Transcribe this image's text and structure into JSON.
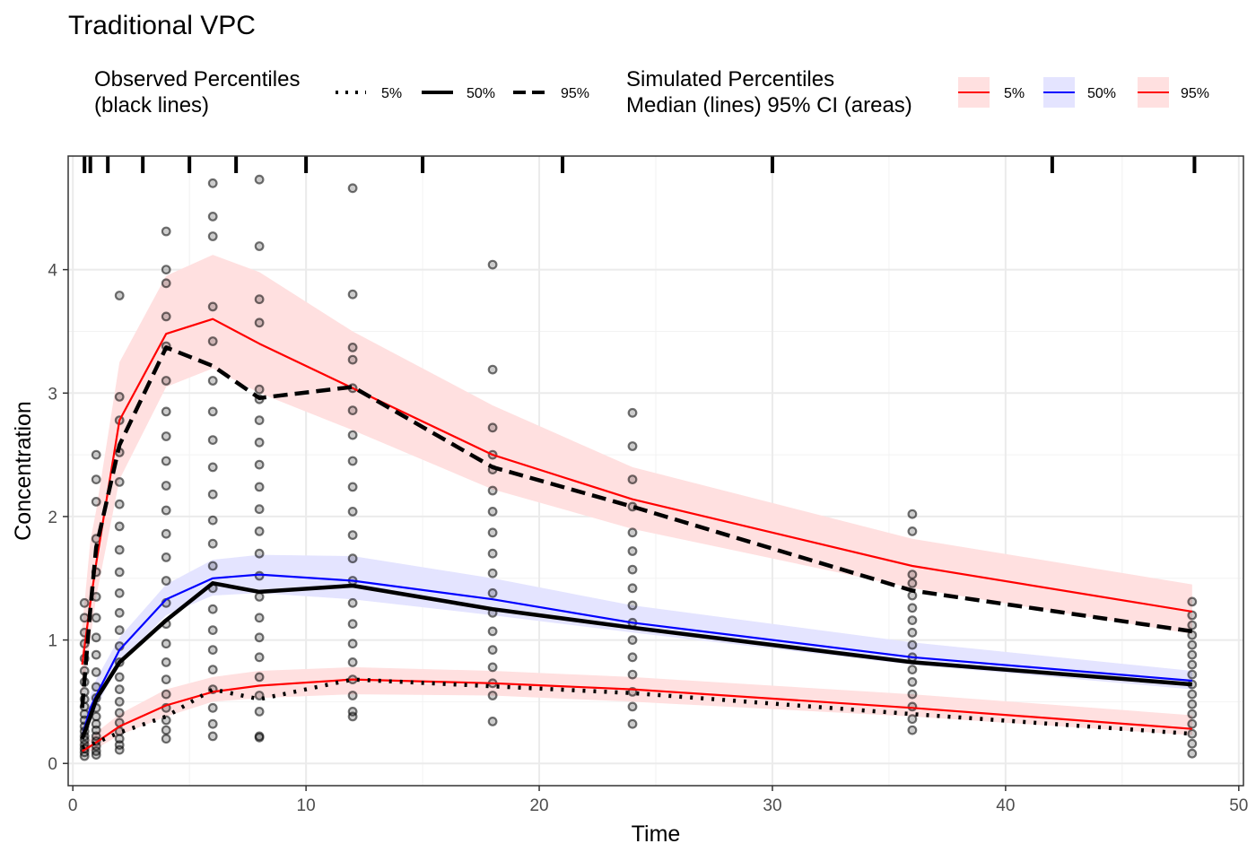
{
  "chart_data": {
    "type": "line",
    "title": "Traditional VPC",
    "xlabel": "Time",
    "ylabel": "Concentration",
    "xlim": [
      -0.2,
      50.2
    ],
    "ylim": [
      -0.18,
      4.92
    ],
    "x_ticks": [
      0,
      10,
      20,
      30,
      40,
      50
    ],
    "y_ticks": [
      0,
      1,
      2,
      3,
      4
    ],
    "grid": true,
    "legend_placement": "top",
    "legend": {
      "observed": {
        "title_line1": "Observed Percentiles",
        "title_line2": "(black lines)",
        "keys": [
          "5%",
          "50%",
          "95%"
        ]
      },
      "simulated": {
        "title_line1": "Simulated Percentiles",
        "title_line2": "Median (lines) 95% CI (areas)",
        "keys": [
          "5%",
          "50%",
          "95%"
        ]
      }
    },
    "bin_separators": [
      0.5,
      0.75,
      1.5,
      3,
      5,
      7,
      10,
      15,
      21,
      30,
      42,
      48.1
    ],
    "observed_percentiles": [
      {
        "name": "5%",
        "style": "dotted",
        "x": [
          0.4,
          0.75,
          2,
          4,
          6,
          8,
          12,
          24,
          36,
          48
        ],
        "y": [
          0.13,
          0.15,
          0.25,
          0.38,
          0.6,
          0.52,
          0.68,
          0.57,
          0.4,
          0.24
        ]
      },
      {
        "name": "50%",
        "style": "solid",
        "x": [
          0.4,
          0.75,
          1,
          2,
          4,
          6,
          8,
          12,
          18,
          24,
          36,
          48
        ],
        "y": [
          0.2,
          0.38,
          0.52,
          0.82,
          1.16,
          1.46,
          1.39,
          1.44,
          1.25,
          1.1,
          0.82,
          0.64
        ]
      },
      {
        "name": "95%",
        "style": "dashed",
        "x": [
          0.4,
          0.75,
          1,
          2,
          4,
          6,
          8,
          12,
          18,
          24,
          36,
          48
        ],
        "y": [
          0.45,
          1.25,
          1.75,
          2.58,
          3.37,
          3.22,
          2.96,
          3.05,
          2.4,
          2.08,
          1.4,
          1.07
        ]
      }
    ],
    "simulated_medians": [
      {
        "name": "5%",
        "color": "#ff0000",
        "x": [
          0.4,
          0.75,
          1,
          2,
          4,
          6,
          8,
          12,
          18,
          24,
          36,
          48
        ],
        "y": [
          0.1,
          0.14,
          0.17,
          0.3,
          0.47,
          0.58,
          0.63,
          0.68,
          0.65,
          0.6,
          0.45,
          0.28
        ]
      },
      {
        "name": "50%",
        "color": "#0000ff",
        "x": [
          0.4,
          0.75,
          1,
          2,
          4,
          6,
          8,
          12,
          18,
          24,
          36,
          48
        ],
        "y": [
          0.22,
          0.45,
          0.55,
          0.92,
          1.33,
          1.5,
          1.53,
          1.48,
          1.33,
          1.14,
          0.86,
          0.67
        ]
      },
      {
        "name": "95%",
        "color": "#ff0000",
        "x": [
          0.4,
          0.75,
          1,
          2,
          4,
          6,
          8,
          12,
          18,
          24,
          36,
          48
        ],
        "y": [
          0.8,
          1.3,
          1.62,
          2.78,
          3.48,
          3.6,
          3.4,
          3.04,
          2.5,
          2.14,
          1.6,
          1.23
        ]
      }
    ],
    "simulated_ci": [
      {
        "name": "5%",
        "color": "#ffe0e0",
        "x": [
          0.4,
          0.75,
          1,
          2,
          4,
          6,
          8,
          12,
          18,
          24,
          36,
          48
        ],
        "lower": [
          0.08,
          0.1,
          0.12,
          0.23,
          0.38,
          0.5,
          0.53,
          0.56,
          0.55,
          0.5,
          0.38,
          0.23
        ],
        "upper": [
          0.14,
          0.2,
          0.25,
          0.4,
          0.6,
          0.7,
          0.75,
          0.78,
          0.75,
          0.7,
          0.56,
          0.39
        ]
      },
      {
        "name": "50%",
        "color": "#e4e4ff",
        "x": [
          0.4,
          0.75,
          1,
          2,
          4,
          6,
          8,
          12,
          18,
          24,
          36,
          48
        ],
        "lower": [
          0.18,
          0.36,
          0.45,
          0.82,
          1.2,
          1.36,
          1.38,
          1.33,
          1.2,
          1.06,
          0.8,
          0.6
        ],
        "upper": [
          0.28,
          0.55,
          0.68,
          1.02,
          1.45,
          1.65,
          1.69,
          1.68,
          1.5,
          1.28,
          0.98,
          0.75
        ]
      },
      {
        "name": "95%",
        "color": "#ffe0e0",
        "x": [
          0.4,
          0.75,
          1,
          2,
          4,
          6,
          8,
          12,
          18,
          24,
          36,
          48
        ],
        "lower": [
          0.55,
          1.0,
          1.35,
          2.3,
          3.05,
          3.2,
          3.0,
          2.7,
          2.22,
          1.9,
          1.42,
          1.05
        ],
        "upper": [
          1.1,
          1.8,
          2.05,
          3.25,
          3.95,
          4.12,
          3.98,
          3.5,
          2.9,
          2.4,
          1.82,
          1.45
        ]
      }
    ],
    "observations": [
      {
        "x": 0.5,
        "y": [
          0.06,
          0.09,
          0.12,
          0.15,
          0.19,
          0.22,
          0.26,
          0.3,
          0.35,
          0.4,
          0.46,
          0.52,
          0.58,
          0.66,
          0.75,
          0.85,
          0.97,
          1.06,
          1.18,
          1.3
        ]
      },
      {
        "x": 1,
        "y": [
          0.07,
          0.1,
          0.14,
          0.18,
          0.22,
          0.27,
          0.32,
          0.38,
          0.45,
          0.53,
          0.62,
          0.74,
          0.88,
          1.02,
          1.18,
          1.35,
          1.55,
          1.82,
          2.12,
          2.3,
          2.5
        ]
      },
      {
        "x": 2,
        "y": [
          0.11,
          0.15,
          0.2,
          0.26,
          0.33,
          0.41,
          0.5,
          0.6,
          0.7,
          0.82,
          0.95,
          1.08,
          1.22,
          1.38,
          1.55,
          1.73,
          1.92,
          2.1,
          2.28,
          2.52,
          2.78,
          2.97,
          3.79
        ]
      },
      {
        "x": 4,
        "y": [
          0.2,
          0.27,
          0.35,
          0.45,
          0.56,
          0.68,
          0.82,
          0.97,
          1.13,
          1.3,
          1.48,
          1.67,
          1.86,
          2.05,
          2.25,
          2.45,
          2.65,
          2.85,
          3.1,
          3.38,
          3.62,
          3.89,
          4.0,
          4.31
        ]
      },
      {
        "x": 6,
        "y": [
          0.22,
          0.32,
          0.45,
          0.6,
          0.76,
          0.92,
          1.08,
          1.25,
          1.42,
          1.6,
          1.78,
          1.97,
          2.18,
          2.4,
          2.62,
          2.85,
          3.1,
          3.42,
          3.7,
          4.27,
          4.43,
          4.7
        ]
      },
      {
        "x": 8,
        "y": [
          0.21,
          0.22,
          0.42,
          0.55,
          0.7,
          0.86,
          1.02,
          1.18,
          1.35,
          1.52,
          1.7,
          1.88,
          2.06,
          2.24,
          2.42,
          2.6,
          2.78,
          2.95,
          3.03,
          3.57,
          3.76,
          4.19,
          4.73
        ]
      },
      {
        "x": 12,
        "y": [
          0.38,
          0.42,
          0.55,
          0.68,
          0.82,
          0.97,
          1.13,
          1.3,
          1.48,
          1.66,
          1.85,
          2.04,
          2.24,
          2.45,
          2.66,
          2.86,
          3.04,
          3.27,
          3.37,
          3.8,
          4.66
        ]
      },
      {
        "x": 18,
        "y": [
          0.34,
          0.55,
          0.65,
          0.78,
          0.92,
          1.07,
          1.22,
          1.38,
          1.54,
          1.7,
          1.87,
          2.04,
          2.21,
          2.38,
          2.5,
          2.72,
          3.19,
          4.04
        ]
      },
      {
        "x": 24,
        "y": [
          0.32,
          0.46,
          0.58,
          0.72,
          0.86,
          1.0,
          1.14,
          1.28,
          1.42,
          1.57,
          1.72,
          1.87,
          2.08,
          2.3,
          2.57,
          2.84
        ]
      },
      {
        "x": 36,
        "y": [
          0.27,
          0.36,
          0.46,
          0.56,
          0.66,
          0.76,
          0.86,
          0.96,
          1.06,
          1.16,
          1.26,
          1.36,
          1.46,
          1.53,
          1.88,
          2.02
        ]
      },
      {
        "x": 48,
        "y": [
          0.08,
          0.16,
          0.24,
          0.32,
          0.4,
          0.48,
          0.56,
          0.64,
          0.72,
          0.8,
          0.88,
          0.96,
          1.04,
          1.12,
          1.2,
          1.31
        ]
      }
    ]
  }
}
